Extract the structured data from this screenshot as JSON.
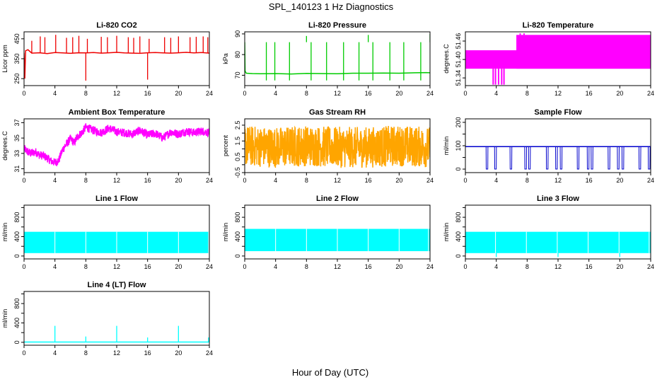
{
  "figure": {
    "title": "SPL_140123  1 Hz Diagnostics",
    "xlabel": "Hour of Day (UTC)"
  },
  "chart_data": [
    {
      "id": "co2",
      "type": "line",
      "title": "Li-820 CO2",
      "ylabel": "Licor ppm",
      "color": "#ee0000",
      "xlim": [
        0,
        24
      ],
      "ylim": [
        215,
        485
      ],
      "xticks": [
        0,
        4,
        8,
        12,
        16,
        20,
        24
      ],
      "yticks": [
        250,
        350,
        450
      ],
      "x": [
        0,
        0.1,
        0.2,
        0.5,
        1,
        2,
        3,
        4,
        5,
        6,
        7,
        8,
        9,
        10,
        11,
        12,
        13,
        14,
        15,
        16,
        17,
        18,
        19,
        20,
        21,
        22,
        23,
        24
      ],
      "y": [
        380,
        250,
        390,
        395,
        378,
        380,
        376,
        381,
        379,
        377,
        380,
        379,
        381,
        378,
        380,
        382,
        379,
        378,
        377,
        380,
        381,
        379,
        378,
        380,
        382,
        379,
        381,
        378
      ],
      "spikes": [
        {
          "x": 1.0,
          "y": 440
        },
        {
          "x": 2.1,
          "y": 462
        },
        {
          "x": 2.7,
          "y": 458
        },
        {
          "x": 4.1,
          "y": 470
        },
        {
          "x": 5.5,
          "y": 455
        },
        {
          "x": 6.3,
          "y": 458
        },
        {
          "x": 7.1,
          "y": 465
        },
        {
          "x": 8.0,
          "y": 240
        },
        {
          "x": 8.2,
          "y": 450
        },
        {
          "x": 10.0,
          "y": 460
        },
        {
          "x": 10.8,
          "y": 458
        },
        {
          "x": 12.0,
          "y": 465
        },
        {
          "x": 13.5,
          "y": 458
        },
        {
          "x": 14.2,
          "y": 455
        },
        {
          "x": 15.0,
          "y": 462
        },
        {
          "x": 16.0,
          "y": 245
        },
        {
          "x": 16.2,
          "y": 450
        },
        {
          "x": 18.2,
          "y": 458
        },
        {
          "x": 19.0,
          "y": 455
        },
        {
          "x": 20.0,
          "y": 462
        },
        {
          "x": 21.5,
          "y": 458
        },
        {
          "x": 22.3,
          "y": 460
        },
        {
          "x": 23.2,
          "y": 462
        },
        {
          "x": 23.8,
          "y": 458
        }
      ]
    },
    {
      "id": "pressure",
      "type": "line",
      "title": "Li-820 Pressure",
      "ylabel": "kPa",
      "color": "#00cc00",
      "xlim": [
        0,
        24
      ],
      "ylim": [
        65,
        91
      ],
      "xticks": [
        0,
        4,
        8,
        12,
        16,
        20,
        24
      ],
      "yticks": [
        70,
        80,
        90
      ],
      "x": [
        0,
        0.05,
        0.2,
        1,
        2,
        4,
        6,
        8,
        10,
        12,
        14,
        16,
        18,
        20,
        22,
        23.5,
        24
      ],
      "y": [
        86,
        72,
        71,
        70.8,
        70.7,
        70.8,
        70.6,
        70.9,
        70.8,
        70.7,
        71.0,
        71.0,
        71.1,
        71.0,
        71.2,
        71.3,
        71.2
      ],
      "spikes": [
        {
          "x": 8.0,
          "y": 89
        },
        {
          "x": 16.0,
          "y": 89.5
        },
        {
          "x": 24.0,
          "y": 90
        },
        {
          "x": 2.8,
          "y": 67.5
        },
        {
          "x": 3.9,
          "y": 67.5
        },
        {
          "x": 5.8,
          "y": 67.5
        },
        {
          "x": 8.6,
          "y": 67.5
        },
        {
          "x": 10.6,
          "y": 67.5
        },
        {
          "x": 12.8,
          "y": 67.5
        },
        {
          "x": 14.8,
          "y": 67.5
        },
        {
          "x": 16.6,
          "y": 67.5
        },
        {
          "x": 18.8,
          "y": 67.5
        },
        {
          "x": 20.6,
          "y": 67.5
        },
        {
          "x": 22.8,
          "y": 67.5
        }
      ]
    },
    {
      "id": "licor_temp",
      "type": "area",
      "title": "Li-820 Temperature",
      "ylabel": "degrees.C",
      "color": "#ff00ff",
      "xlim": [
        0,
        24
      ],
      "ylim": [
        51.315,
        51.49
      ],
      "xticks": [
        0,
        4,
        8,
        12,
        16,
        20,
        24
      ],
      "yticks": [
        51.34,
        51.4,
        51.46
      ],
      "ytick_labels": [
        "51.34",
        "51.40",
        "51.46"
      ],
      "bands": [
        {
          "x0": 0,
          "x1": 24,
          "ylo": 51.37,
          "yhi": 51.43
        },
        {
          "x0": 6.6,
          "x1": 24,
          "ylo": 51.37,
          "yhi": 51.48
        }
      ],
      "spikes": [
        {
          "x": 3.6,
          "y": 51.318
        },
        {
          "x": 3.9,
          "y": 51.318
        },
        {
          "x": 4.3,
          "y": 51.318
        },
        {
          "x": 4.7,
          "y": 51.318
        },
        {
          "x": 5.0,
          "y": 51.318
        },
        {
          "x": 7.1,
          "y": 51.485
        },
        {
          "x": 7.6,
          "y": 51.485
        }
      ]
    },
    {
      "id": "box_temp",
      "type": "line",
      "title": "Ambient Box Temperature",
      "ylabel": "degrees.C",
      "color": "#ff00ff",
      "xlim": [
        0,
        24
      ],
      "ylim": [
        30.5,
        37.5
      ],
      "xticks": [
        0,
        4,
        8,
        12,
        16,
        20,
        24
      ],
      "yticks": [
        31,
        33,
        35,
        37
      ],
      "x": [
        0,
        0.5,
        1,
        1.5,
        2,
        2.5,
        3,
        3.5,
        4,
        4.5,
        5,
        5.5,
        6,
        6.5,
        7,
        7.5,
        8,
        9,
        10,
        11,
        12,
        13,
        14,
        15,
        16,
        17,
        18,
        19,
        20,
        21,
        22,
        23,
        24
      ],
      "y": [
        33.6,
        33.2,
        33.0,
        33.2,
        32.8,
        32.7,
        32.4,
        32.0,
        31.8,
        32.1,
        33.5,
        34.2,
        34.9,
        34.4,
        35.3,
        35.7,
        36.4,
        36.0,
        35.7,
        36.3,
        35.8,
        35.7,
        35.5,
        36.0,
        35.4,
        35.6,
        35.0,
        35.8,
        35.5,
        35.9,
        35.7,
        35.9,
        35.7
      ],
      "noise": 0.55
    },
    {
      "id": "rh",
      "type": "line",
      "title": "Gas Stream RH",
      "ylabel": "percent",
      "color": "#ffa500",
      "xlim": [
        0,
        24
      ],
      "ylim": [
        -0.5,
        2.9
      ],
      "xticks": [
        0,
        4,
        8,
        12,
        16,
        20,
        24
      ],
      "yticks": [
        -0.5,
        0.5,
        1.5,
        2.5
      ],
      "yticks_minor": [
        0,
        1,
        2
      ],
      "x": [
        0,
        4,
        8,
        12,
        16,
        20,
        24
      ],
      "y": [
        1.2,
        1.1,
        1.2,
        1.1,
        1.1,
        1.2,
        1.1
      ],
      "noise": 1.3
    },
    {
      "id": "sample_flow",
      "type": "line",
      "title": "Sample Flow",
      "ylabel": "ml/min",
      "color": "#0000cc",
      "xlim": [
        0,
        24
      ],
      "ylim": [
        -15,
        215
      ],
      "xticks": [
        0,
        4,
        8,
        12,
        16,
        20,
        24
      ],
      "yticks": [
        0,
        100,
        200
      ],
      "yticks_minor": [
        50,
        150
      ],
      "x": [
        0,
        24
      ],
      "y": [
        96,
        96
      ],
      "dips": [
        2.8,
        3.9,
        5.9,
        7.8,
        8.3,
        10.6,
        11.8,
        12.4,
        14.6,
        15.9,
        16.4,
        18.6,
        19.8,
        20.4,
        22.6,
        23.8
      ]
    },
    {
      "id": "line1",
      "type": "area",
      "title": "Line 1 Flow",
      "ylabel": "ml/min",
      "color": "#00ffff",
      "xlim": [
        0,
        24
      ],
      "ylim": [
        -60,
        1050
      ],
      "xticks": [
        0,
        4,
        8,
        12,
        16,
        20,
        24
      ],
      "yticks": [
        0,
        400,
        800
      ],
      "yticks_minor": [
        200,
        600,
        1000
      ],
      "bands": [
        {
          "x0": 0,
          "x1": 24,
          "ylo": 60,
          "yhi": 500
        }
      ],
      "gaps": [
        4,
        8,
        12,
        16,
        20,
        23.9
      ]
    },
    {
      "id": "line2",
      "type": "area",
      "title": "Line 2 Flow",
      "ylabel": "ml/min",
      "color": "#00ffff",
      "xlim": [
        0,
        24
      ],
      "ylim": [
        -60,
        1050
      ],
      "xticks": [
        0,
        4,
        8,
        12,
        16,
        20,
        24
      ],
      "yticks": [
        0,
        400,
        800
      ],
      "yticks_minor": [
        200,
        600,
        1000
      ],
      "bands": [
        {
          "x0": 0,
          "x1": 24,
          "ylo": 100,
          "yhi": 560
        }
      ],
      "gaps": [
        4,
        8,
        12,
        16,
        20,
        23.8
      ]
    },
    {
      "id": "line3",
      "type": "area",
      "title": "Line 3 Flow",
      "ylabel": "ml/min",
      "color": "#00ffff",
      "xlim": [
        0,
        24
      ],
      "ylim": [
        -60,
        1050
      ],
      "xticks": [
        0,
        4,
        8,
        12,
        16,
        20,
        24
      ],
      "yticks": [
        0,
        400,
        800
      ],
      "yticks_minor": [
        200,
        600,
        1000
      ],
      "bands": [
        {
          "x0": 0,
          "x1": 24,
          "ylo": 60,
          "yhi": 500
        }
      ],
      "gaps": [
        3.9,
        7.9,
        11.9,
        15.9,
        19.9,
        23.8
      ],
      "spikes": [
        {
          "x": 4.0,
          "y": -20
        },
        {
          "x": 12.0,
          "y": -20
        },
        {
          "x": 20.0,
          "y": -20
        }
      ]
    },
    {
      "id": "line4",
      "type": "line",
      "title": "Line 4 (LT) Flow",
      "ylabel": "ml/min",
      "color": "#00ffff",
      "xlim": [
        0,
        24
      ],
      "ylim": [
        -60,
        1050
      ],
      "xticks": [
        0,
        4,
        8,
        12,
        16,
        20,
        24
      ],
      "yticks": [
        0,
        400,
        800
      ],
      "yticks_minor": [
        200,
        600,
        1000
      ],
      "x": [
        0,
        24
      ],
      "y": [
        5,
        5
      ],
      "spikes": [
        {
          "x": 4.0,
          "y": 340
        },
        {
          "x": 8.0,
          "y": 120
        },
        {
          "x": 12.0,
          "y": 340
        },
        {
          "x": 16.0,
          "y": 100
        },
        {
          "x": 20.0,
          "y": 340
        },
        {
          "x": 23.9,
          "y": 100
        }
      ]
    }
  ]
}
